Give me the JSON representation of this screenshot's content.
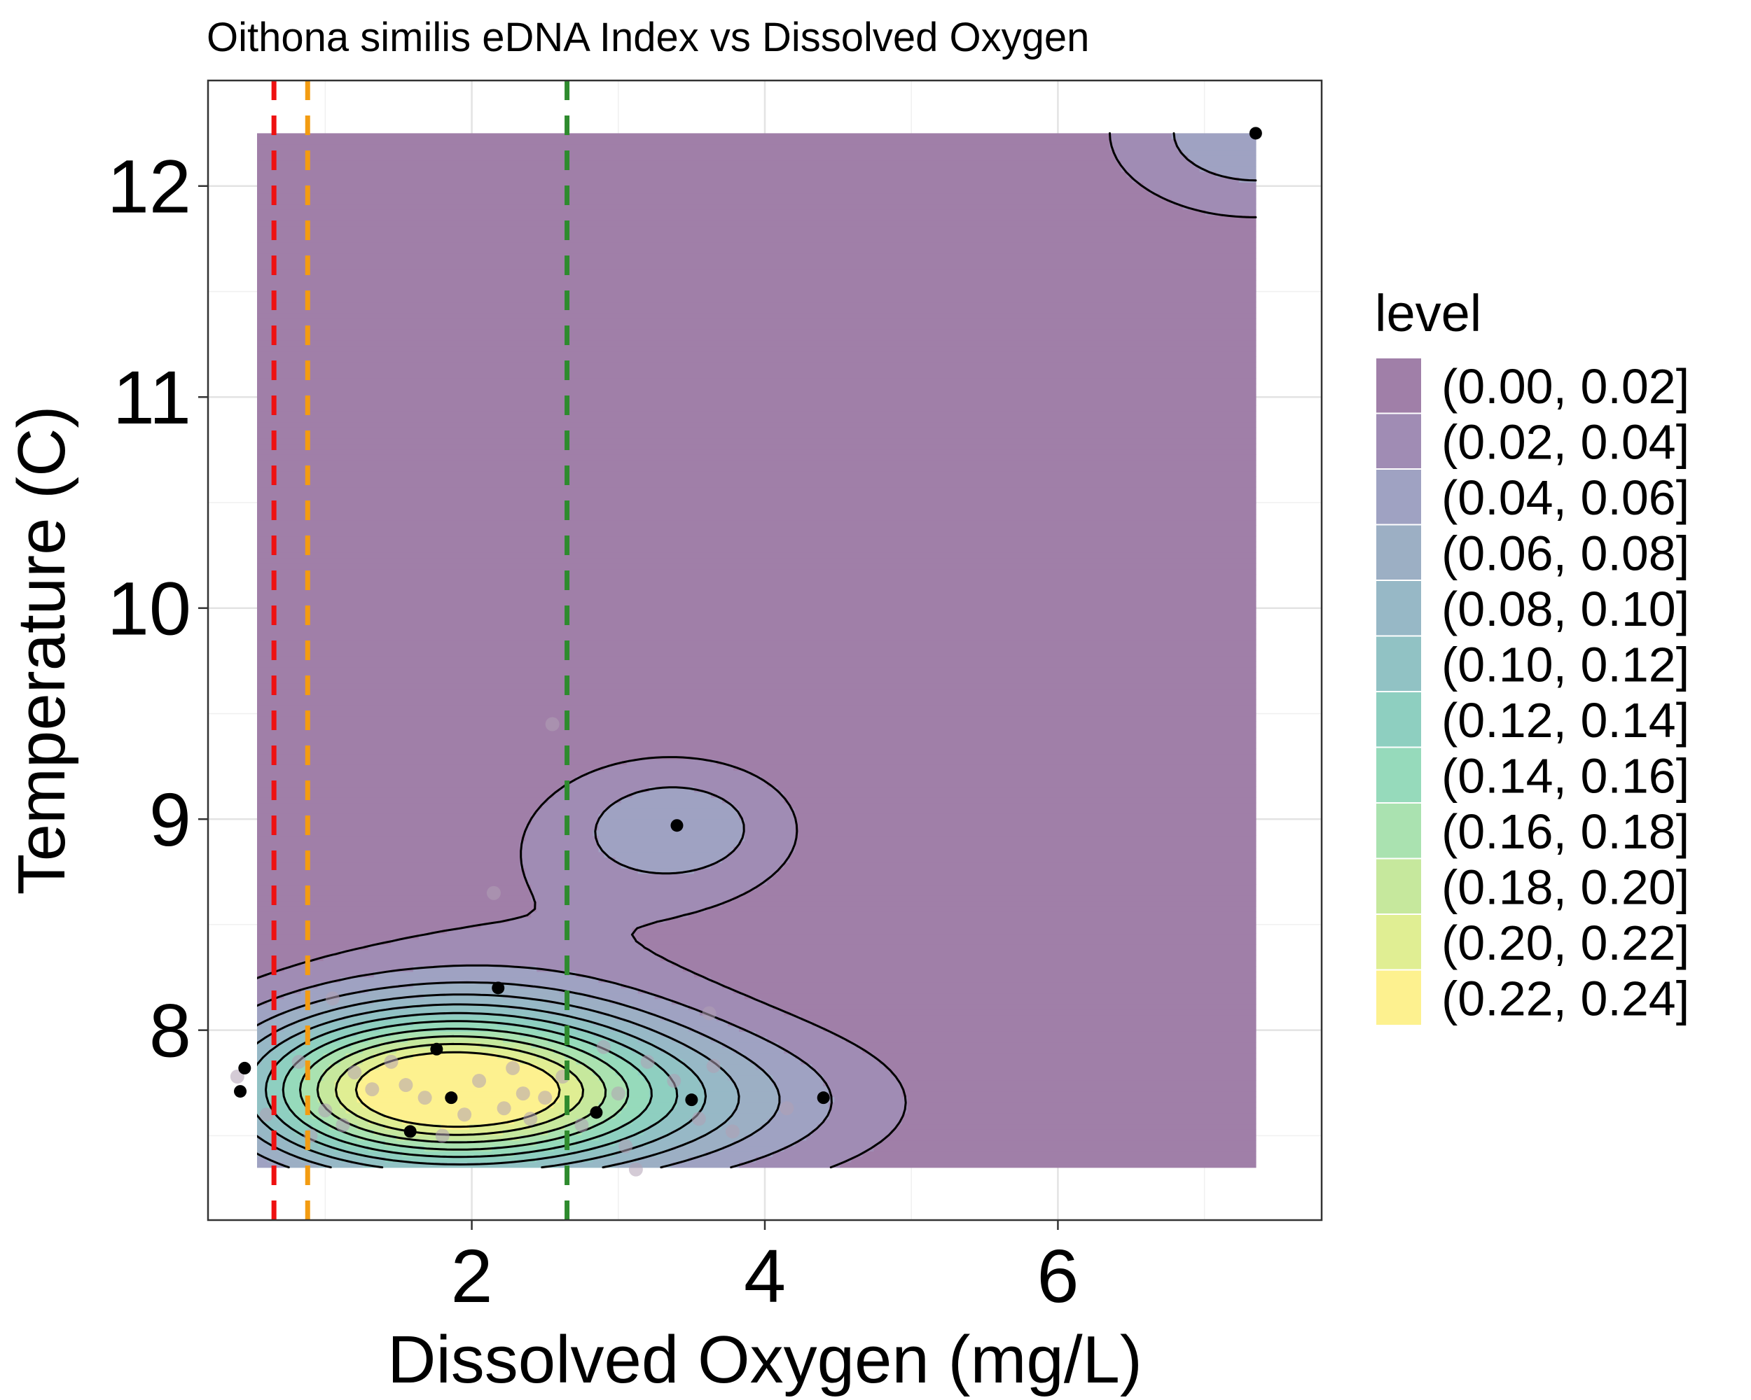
{
  "chart_data": {
    "type": "contour",
    "title": "Oithona similis eDNA Index vs Dissolved Oxygen",
    "xlabel": "Dissolved Oxygen (mg/L)",
    "ylabel": "Temperature (C)",
    "xlim": [
      0.2,
      7.8
    ],
    "ylim": [
      7.1,
      12.5
    ],
    "grid": true,
    "x_ticks": [
      {
        "value": 2,
        "label": "2"
      },
      {
        "value": 4,
        "label": "4"
      },
      {
        "value": 6,
        "label": "6"
      }
    ],
    "y_ticks": [
      {
        "value": 8,
        "label": "8"
      },
      {
        "value": 9,
        "label": "9"
      },
      {
        "value": 10,
        "label": "10"
      },
      {
        "value": 11,
        "label": "11"
      },
      {
        "value": 12,
        "label": "12"
      }
    ],
    "legend": {
      "title": "level",
      "placement": "right",
      "entries": [
        {
          "label": "(0.00, 0.02]",
          "color": "#a07fa8"
        },
        {
          "label": "(0.02, 0.04]",
          "color": "#a08cb4"
        },
        {
          "label": "(0.04, 0.06]",
          "color": "#9fa2c2"
        },
        {
          "label": "(0.06, 0.08]",
          "color": "#9cafc4"
        },
        {
          "label": "(0.08, 0.10]",
          "color": "#97b8c6"
        },
        {
          "label": "(0.10, 0.12]",
          "color": "#91c2c4"
        },
        {
          "label": "(0.12, 0.14]",
          "color": "#8ecfc0"
        },
        {
          "label": "(0.14, 0.16]",
          "color": "#96dabb"
        },
        {
          "label": "(0.16, 0.18]",
          "color": "#aae2b0"
        },
        {
          "label": "(0.18, 0.20]",
          "color": "#c6e89d"
        },
        {
          "label": "(0.20, 0.22]",
          "color": "#e0ee93"
        },
        {
          "label": "(0.22, 0.24]",
          "color": "#fdf18f"
        }
      ]
    },
    "vlines": [
      {
        "x": 0.65,
        "color": "#ee1111",
        "style": "dashed"
      },
      {
        "x": 0.88,
        "color": "#f39c12",
        "style": "dashed"
      },
      {
        "x": 2.65,
        "color": "#2e8b2e",
        "style": "dashed"
      }
    ],
    "density_region": {
      "x": [
        0.45,
        7.35
      ],
      "y": [
        7.35,
        12.25
      ]
    },
    "contour_levels": [
      0.02,
      0.04,
      0.06,
      0.08,
      0.1,
      0.12,
      0.14,
      0.16,
      0.18,
      0.2,
      0.22
    ],
    "points_highlighted": [
      {
        "x": 0.45,
        "y": 7.82
      },
      {
        "x": 0.42,
        "y": 7.71
      },
      {
        "x": 1.58,
        "y": 7.52
      },
      {
        "x": 1.76,
        "y": 7.91
      },
      {
        "x": 1.86,
        "y": 7.68
      },
      {
        "x": 2.18,
        "y": 8.2
      },
      {
        "x": 2.85,
        "y": 7.61
      },
      {
        "x": 3.4,
        "y": 8.97
      },
      {
        "x": 3.5,
        "y": 7.67
      },
      {
        "x": 4.4,
        "y": 7.68
      },
      {
        "x": 7.35,
        "y": 12.25
      }
    ],
    "points_background": [
      {
        "x": 2.55,
        "y": 9.45
      },
      {
        "x": 2.15,
        "y": 8.65
      },
      {
        "x": 0.4,
        "y": 7.78
      },
      {
        "x": 0.6,
        "y": 7.6
      },
      {
        "x": 0.82,
        "y": 7.85
      },
      {
        "x": 1.0,
        "y": 7.62
      },
      {
        "x": 1.12,
        "y": 7.55
      },
      {
        "x": 1.2,
        "y": 7.8
      },
      {
        "x": 1.32,
        "y": 7.72
      },
      {
        "x": 1.45,
        "y": 7.85
      },
      {
        "x": 1.55,
        "y": 7.74
      },
      {
        "x": 1.68,
        "y": 7.68
      },
      {
        "x": 1.95,
        "y": 7.6
      },
      {
        "x": 2.05,
        "y": 7.76
      },
      {
        "x": 2.22,
        "y": 7.63
      },
      {
        "x": 2.28,
        "y": 7.82
      },
      {
        "x": 2.4,
        "y": 7.58
      },
      {
        "x": 2.5,
        "y": 7.68
      },
      {
        "x": 2.62,
        "y": 7.78
      },
      {
        "x": 2.75,
        "y": 7.55
      },
      {
        "x": 3.0,
        "y": 7.7
      },
      {
        "x": 3.05,
        "y": 7.45
      },
      {
        "x": 3.12,
        "y": 7.34
      },
      {
        "x": 3.2,
        "y": 7.85
      },
      {
        "x": 3.38,
        "y": 7.76
      },
      {
        "x": 3.55,
        "y": 7.58
      },
      {
        "x": 3.65,
        "y": 7.83
      },
      {
        "x": 3.62,
        "y": 8.08
      },
      {
        "x": 3.78,
        "y": 7.52
      },
      {
        "x": 4.15,
        "y": 7.63
      },
      {
        "x": 1.05,
        "y": 8.15
      },
      {
        "x": 0.9,
        "y": 7.5
      },
      {
        "x": 2.9,
        "y": 7.92
      },
      {
        "x": 1.8,
        "y": 7.5
      },
      {
        "x": 2.35,
        "y": 7.7
      }
    ]
  }
}
